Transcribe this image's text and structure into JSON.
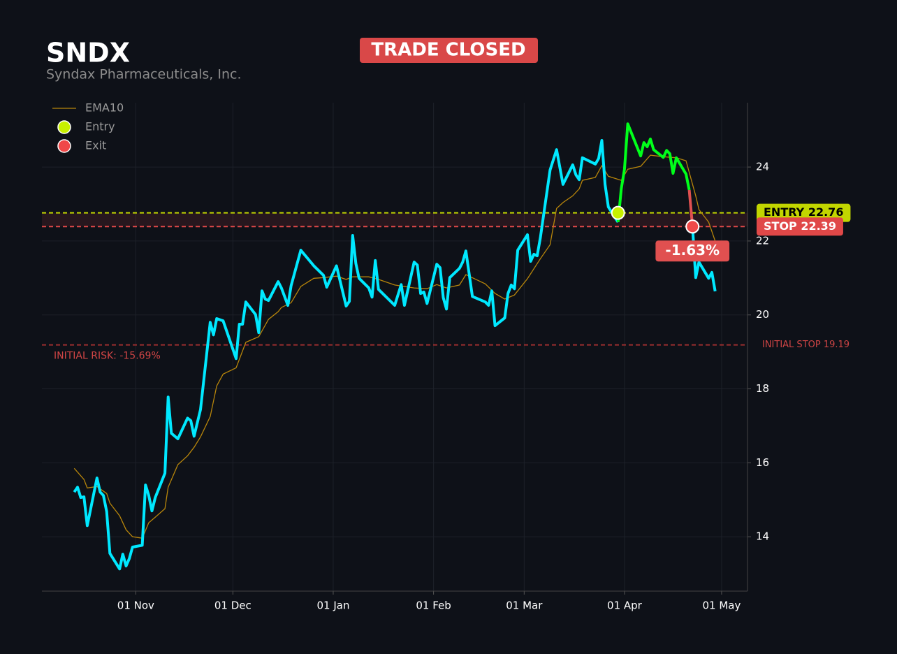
{
  "chart_data": {
    "type": "line",
    "title": "SNDX",
    "subtitle": "Syndax Pharmaceuticals, Inc.",
    "status_label": "TRADE CLOSED",
    "pnl_label": "-1.63%",
    "risk_label": "INITIAL RISK: -15.69%",
    "xlim": [
      "03 Oct",
      "09 May"
    ],
    "xticks": [
      "01 Nov",
      "01 Dec",
      "01 Jan",
      "01 Feb",
      "01 Mar",
      "01 Apr",
      "01 May"
    ],
    "ylim": [
      12.53,
      25.74
    ],
    "yticks": [
      14,
      16,
      18,
      20,
      22,
      24
    ],
    "grid": true,
    "legend": "upper left",
    "price": {
      "color": "#00e8ff",
      "trade_color": "#00ff1a",
      "loss_color": "#e05050",
      "x": [
        "13 Oct",
        "14 Oct",
        "15 Oct",
        "16 Oct",
        "17 Oct",
        "20 Oct",
        "21 Oct",
        "22 Oct",
        "23 Oct",
        "24 Oct",
        "27 Oct",
        "28 Oct",
        "29 Oct",
        "30 Oct",
        "31 Oct",
        "03 Nov",
        "04 Nov",
        "05 Nov",
        "06 Nov",
        "07 Nov",
        "10 Nov",
        "11 Nov",
        "12 Nov",
        "14 Nov",
        "17 Nov",
        "18 Nov",
        "19 Nov",
        "21 Nov",
        "24 Nov",
        "25 Nov",
        "26 Nov",
        "28 Nov",
        "02 Dec",
        "03 Dec",
        "04 Dec",
        "05 Dec",
        "08 Dec",
        "09 Dec",
        "10 Dec",
        "11 Dec",
        "12 Dec",
        "15 Dec",
        "16 Dec",
        "18 Dec",
        "19 Dec",
        "22 Dec",
        "26 Dec",
        "29 Dec",
        "30 Dec",
        "02 Jan",
        "05 Jan",
        "06 Jan",
        "07 Jan",
        "08 Jan",
        "09 Jan",
        "12 Jan",
        "13 Jan",
        "14 Jan",
        "15 Jan",
        "20 Jan",
        "22 Jan",
        "23 Jan",
        "26 Jan",
        "27 Jan",
        "28 Jan",
        "29 Jan",
        "30 Jan",
        "02 Feb",
        "03 Feb",
        "04 Feb",
        "05 Feb",
        "06 Feb",
        "09 Feb",
        "10 Feb",
        "11 Feb",
        "13 Feb",
        "17 Feb",
        "18 Feb",
        "19 Feb",
        "20 Feb",
        "23 Feb",
        "24 Feb",
        "25 Feb",
        "26 Feb",
        "27 Feb",
        "02 Mar",
        "03 Mar",
        "04 Mar",
        "05 Mar",
        "06 Mar",
        "09 Mar",
        "11 Mar",
        "13 Mar",
        "16 Mar",
        "17 Mar",
        "18 Mar",
        "19 Mar",
        "23 Mar",
        "24 Mar",
        "25 Mar",
        "26 Mar",
        "27 Mar",
        "30 Mar",
        "31 Mar",
        "01 Apr",
        "02 Apr",
        "06 Apr",
        "07 Apr",
        "08 Apr",
        "09 Apr",
        "10 Apr",
        "13 Apr",
        "14 Apr",
        "15 Apr",
        "16 Apr",
        "17 Apr",
        "20 Apr",
        "21 Apr",
        "22 Apr",
        "23 Apr",
        "24 Apr",
        "27 Apr",
        "28 Apr",
        "29 Apr"
      ],
      "values": [
        15.21,
        15.34,
        15.06,
        15.08,
        14.3,
        15.59,
        15.21,
        15.12,
        14.68,
        13.55,
        13.13,
        13.53,
        13.21,
        13.41,
        13.72,
        13.77,
        15.4,
        15.12,
        14.7,
        15.06,
        15.72,
        17.78,
        16.8,
        16.65,
        17.21,
        17.14,
        16.72,
        17.44,
        19.8,
        19.46,
        19.9,
        19.84,
        18.82,
        19.75,
        19.75,
        20.35,
        20.01,
        19.52,
        20.65,
        20.43,
        20.39,
        20.9,
        20.73,
        20.26,
        20.79,
        21.75,
        21.33,
        21.07,
        20.75,
        21.33,
        20.24,
        20.37,
        22.15,
        21.39,
        20.99,
        20.73,
        20.48,
        21.47,
        20.69,
        20.26,
        20.82,
        20.26,
        21.43,
        21.35,
        20.58,
        20.62,
        20.31,
        21.37,
        21.28,
        20.47,
        20.16,
        21.01,
        21.26,
        21.43,
        21.73,
        20.5,
        20.35,
        20.26,
        20.65,
        19.71,
        19.92,
        20.58,
        20.81,
        20.71,
        21.75,
        22.17,
        21.45,
        21.64,
        21.6,
        22.09,
        23.92,
        24.47,
        23.53,
        24.06,
        23.79,
        23.66,
        24.25,
        24.08,
        24.23,
        24.72,
        23.53,
        22.92,
        22.51,
        23.41,
        23.94,
        25.17,
        24.3,
        24.66,
        24.55,
        24.76,
        24.47,
        24.26,
        24.45,
        24.36,
        23.83,
        24.25,
        23.81,
        23.38,
        22.41,
        21.01,
        21.43,
        20.99,
        21.15,
        20.64
      ]
    },
    "ema": {
      "name": "EMA10",
      "color": "#b8860b",
      "x": [
        "13 Oct",
        "16 Oct",
        "17 Oct",
        "20 Oct",
        "23 Oct",
        "24 Oct",
        "27 Oct",
        "29 Oct",
        "31 Oct",
        "03 Nov",
        "05 Nov",
        "07 Nov",
        "10 Nov",
        "11 Nov",
        "14 Nov",
        "17 Nov",
        "19 Nov",
        "21 Nov",
        "24 Nov",
        "26 Nov",
        "28 Nov",
        "02 Dec",
        "05 Dec",
        "09 Dec",
        "12 Dec",
        "15 Dec",
        "16 Dec",
        "19 Dec",
        "22 Dec",
        "26 Dec",
        "29 Dec",
        "02 Jan",
        "05 Jan",
        "07 Jan",
        "12 Jan",
        "15 Jan",
        "20 Jan",
        "26 Jan",
        "30 Jan",
        "02 Feb",
        "05 Feb",
        "09 Feb",
        "11 Feb",
        "17 Feb",
        "20 Feb",
        "23 Feb",
        "26 Feb",
        "02 Mar",
        "06 Mar",
        "09 Mar",
        "11 Mar",
        "13 Mar",
        "16 Mar",
        "18 Mar",
        "19 Mar",
        "23 Mar",
        "25 Mar",
        "27 Mar",
        "31 Mar",
        "02 Apr",
        "06 Apr",
        "09 Apr",
        "13 Apr",
        "17 Apr",
        "20 Apr",
        "23 Apr",
        "24 Apr",
        "27 Apr",
        "29 Apr"
      ],
      "values": [
        15.85,
        15.55,
        15.32,
        15.36,
        15.17,
        14.91,
        14.57,
        14.19,
        14.0,
        13.96,
        14.38,
        14.53,
        14.76,
        15.34,
        15.95,
        16.19,
        16.42,
        16.7,
        17.25,
        18.08,
        18.4,
        18.57,
        19.26,
        19.41,
        19.88,
        20.09,
        20.2,
        20.33,
        20.77,
        20.99,
        21.01,
        21.05,
        20.96,
        21.03,
        21.03,
        20.96,
        20.81,
        20.73,
        20.71,
        20.82,
        20.73,
        20.81,
        21.09,
        20.84,
        20.58,
        20.43,
        20.54,
        20.98,
        21.52,
        21.9,
        22.88,
        23.04,
        23.22,
        23.41,
        23.64,
        23.72,
        24.04,
        23.75,
        23.64,
        23.94,
        24.02,
        24.32,
        24.28,
        24.25,
        24.17,
        23.22,
        22.85,
        22.51,
        22.0
      ]
    },
    "markers": [
      {
        "name": "Entry",
        "x": "30 Mar",
        "value": 22.76,
        "color": "#c8f000"
      },
      {
        "name": "Exit",
        "x": "22 Apr",
        "value": 22.39,
        "color": "#f04848"
      }
    ],
    "levels": [
      {
        "label": "ENTRY 22.76",
        "value": 22.76,
        "color": "#c2d600",
        "text_color": "#000000",
        "badge": true
      },
      {
        "label": "STOP 22.39",
        "value": 22.39,
        "color": "#e04848",
        "text_color": "#ffffff",
        "badge": true
      },
      {
        "label": "INITIAL STOP 19.19",
        "value": 19.19,
        "color": "#9a2e2e",
        "text_color": "#d04545",
        "badge": false
      }
    ]
  }
}
